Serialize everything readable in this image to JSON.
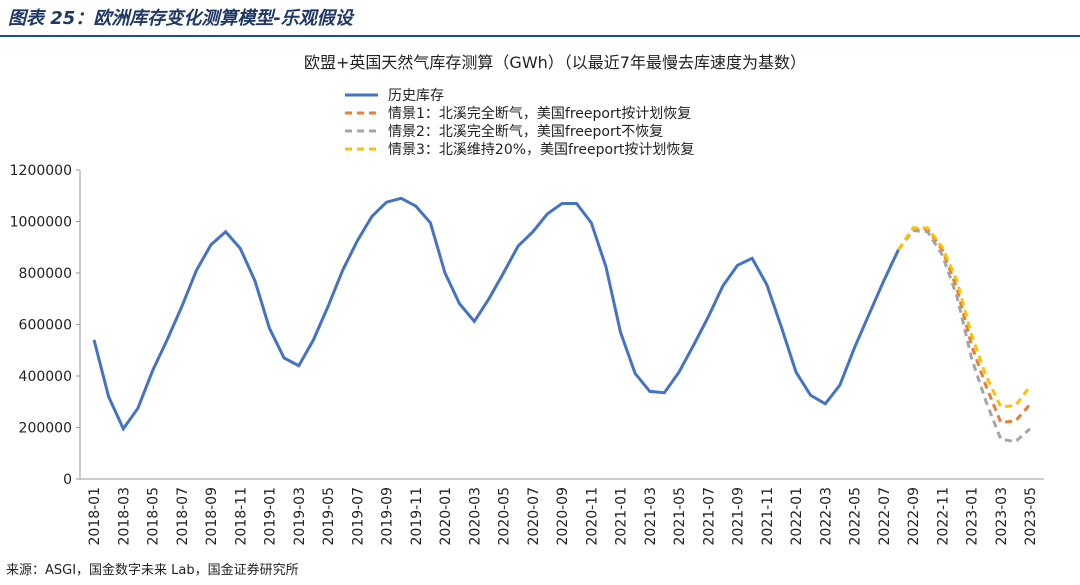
{
  "header": {
    "title": "图表 25：欧洲库存变化测算模型-乐观假设"
  },
  "chart_data": {
    "type": "line",
    "title": "欧盟+英国天然气库存测算（GWh）（以最近7年最慢去库速度为基数）",
    "categories": [
      "2018-01",
      null,
      "2018-03",
      null,
      "2018-05",
      null,
      "2018-07",
      null,
      "2018-09",
      null,
      "2018-11",
      null,
      "2019-01",
      null,
      "2019-03",
      null,
      "2019-05",
      null,
      "2019-07",
      null,
      "2019-09",
      null,
      "2019-11",
      null,
      "2020-01",
      null,
      "2020-03",
      null,
      "2020-05",
      null,
      "2020-07",
      null,
      "2020-09",
      null,
      "2020-11",
      null,
      "2021-01",
      null,
      "2021-03",
      null,
      "2021-05",
      null,
      "2021-07",
      null,
      "2021-09",
      null,
      "2021-11",
      null,
      "2022-01",
      null,
      "2022-03",
      null,
      "2022-05",
      null,
      "2022-07",
      null,
      "2022-09",
      null,
      "2022-11",
      null,
      "2023-01",
      null,
      "2023-03",
      null,
      "2023-05"
    ],
    "series": [
      {
        "name": "历史库存",
        "color": "#4472c4",
        "dash": false,
        "values": [
          540000,
          320000,
          195000,
          275000,
          420000,
          540000,
          670000,
          810000,
          910000,
          960000,
          895000,
          770000,
          585000,
          470000,
          440000,
          540000,
          670000,
          810000,
          925000,
          1020000,
          1075000,
          1090000,
          1060000,
          995000,
          800000,
          680000,
          612000,
          700000,
          800000,
          905000,
          960000,
          1030000,
          1070000,
          1070000,
          995000,
          825000,
          570000,
          410000,
          340000,
          335000,
          415000,
          520000,
          630000,
          750000,
          830000,
          857000,
          755000,
          590000,
          415000,
          325000,
          292000,
          365000,
          510000,
          640000,
          770000,
          890000,
          null,
          null,
          null,
          null,
          null,
          null,
          null,
          null,
          null
        ]
      },
      {
        "name": "情景1：北溪完全断气，美国freeport按计划恢复",
        "color": "#ed7d31",
        "dash": true,
        "values": [
          null,
          null,
          null,
          null,
          null,
          null,
          null,
          null,
          null,
          null,
          null,
          null,
          null,
          null,
          null,
          null,
          null,
          null,
          null,
          null,
          null,
          null,
          null,
          null,
          null,
          null,
          null,
          null,
          null,
          null,
          null,
          null,
          null,
          null,
          null,
          null,
          null,
          null,
          null,
          null,
          null,
          null,
          null,
          null,
          null,
          null,
          null,
          null,
          null,
          null,
          null,
          null,
          null,
          null,
          null,
          890000,
          970000,
          970000,
          890000,
          740000,
          520000,
          360000,
          220000,
          225000,
          290000
        ]
      },
      {
        "name": "情景2：北溪完全断气，美国freeport不恢复",
        "color": "#a5a5a5",
        "dash": true,
        "values": [
          null,
          null,
          null,
          null,
          null,
          null,
          null,
          null,
          null,
          null,
          null,
          null,
          null,
          null,
          null,
          null,
          null,
          null,
          null,
          null,
          null,
          null,
          null,
          null,
          null,
          null,
          null,
          null,
          null,
          null,
          null,
          null,
          null,
          null,
          null,
          null,
          null,
          null,
          null,
          null,
          null,
          null,
          null,
          null,
          null,
          null,
          null,
          null,
          null,
          null,
          null,
          null,
          null,
          null,
          null,
          890000,
          965000,
          960000,
          870000,
          710000,
          470000,
          300000,
          155000,
          145000,
          195000
        ]
      },
      {
        "name": "情景3：北溪维持20%，美国freeport按计划恢复",
        "color": "#ffc000",
        "dash": true,
        "values": [
          null,
          null,
          null,
          null,
          null,
          null,
          null,
          null,
          null,
          null,
          null,
          null,
          null,
          null,
          null,
          null,
          null,
          null,
          null,
          null,
          null,
          null,
          null,
          null,
          null,
          null,
          null,
          null,
          null,
          null,
          null,
          null,
          null,
          null,
          null,
          null,
          null,
          null,
          null,
          null,
          null,
          null,
          null,
          null,
          null,
          null,
          null,
          null,
          null,
          null,
          null,
          null,
          null,
          null,
          null,
          890000,
          975000,
          975000,
          900000,
          770000,
          560000,
          400000,
          280000,
          285000,
          360000
        ]
      }
    ],
    "ylim": [
      0,
      1200000
    ],
    "yticks": [
      0,
      200000,
      400000,
      600000,
      800000,
      1000000,
      1200000
    ],
    "grid": false
  },
  "footer": {
    "source": "来源：ASGI，国金数字未来 Lab，国金证券研究所"
  }
}
